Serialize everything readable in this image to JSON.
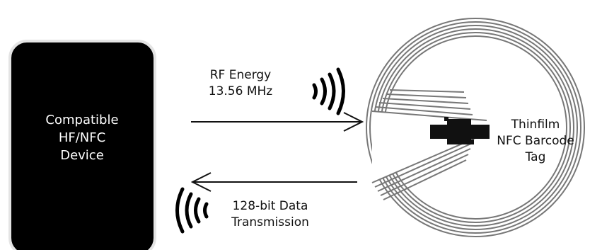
{
  "device": {
    "lines": [
      "Compatible",
      "HF/NFC",
      "Device"
    ]
  },
  "rf_energy": {
    "lines": [
      "RF Energy",
      "13.56 MHz"
    ]
  },
  "data_transmission": {
    "lines": [
      "128-bit Data",
      "Transmission"
    ]
  },
  "tag": {
    "lines": [
      "Thinfilm",
      "NFC Barcode",
      "Tag"
    ]
  },
  "colors": {
    "device_fill": "#000000",
    "device_border": "#e4e4e4",
    "coil": "#777777",
    "chip": "#111111"
  }
}
